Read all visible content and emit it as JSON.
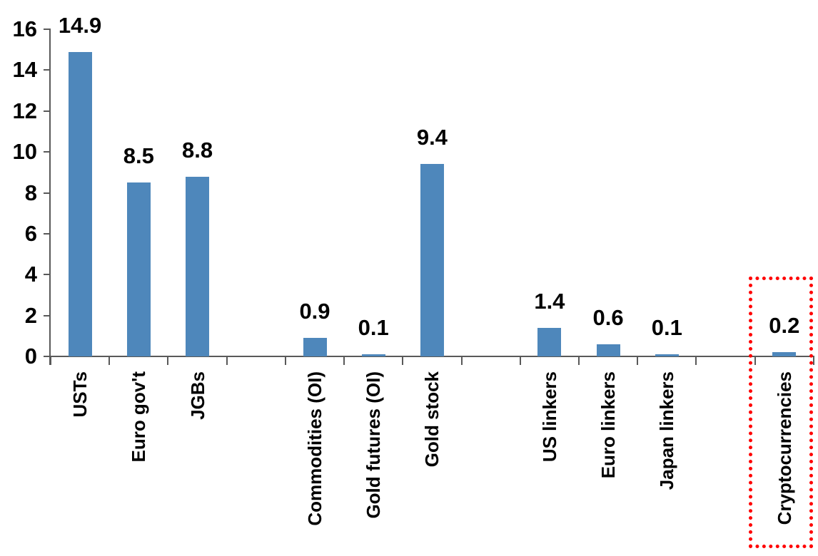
{
  "chart_data": {
    "type": "bar",
    "title": "",
    "xlabel": "",
    "ylabel": "",
    "ylim": [
      0,
      16
    ],
    "ytick_step": 2,
    "ytick_labels": [
      "0",
      "2",
      "4",
      "6",
      "8",
      "10",
      "12",
      "14",
      "16"
    ],
    "grid": false,
    "legend": "none",
    "n_slots": 13,
    "bar_color": "#4E87BB",
    "axis_color": "#595959",
    "text_color": "#000000",
    "highlight_color": "#FF0000",
    "value_label_format": "one_decimal",
    "items": [
      {
        "label": "USTs",
        "value": 14.9,
        "value_label": "14.9",
        "slot": 0,
        "highlighted": false
      },
      {
        "label": "Euro gov't",
        "value": 8.5,
        "value_label": "8.5",
        "slot": 1,
        "highlighted": false
      },
      {
        "label": "JGBs",
        "value": 8.8,
        "value_label": "8.8",
        "slot": 2,
        "highlighted": false
      },
      {
        "label": "Commodities (OI)",
        "value": 0.9,
        "value_label": "0.9",
        "slot": 4,
        "highlighted": false
      },
      {
        "label": "Gold futures (OI)",
        "value": 0.1,
        "value_label": "0.1",
        "slot": 5,
        "highlighted": false
      },
      {
        "label": "Gold stock",
        "value": 9.4,
        "value_label": "9.4",
        "slot": 6,
        "highlighted": false
      },
      {
        "label": "US linkers",
        "value": 1.4,
        "value_label": "1.4",
        "slot": 8,
        "highlighted": false
      },
      {
        "label": "Euro linkers",
        "value": 0.6,
        "value_label": "0.6",
        "slot": 9,
        "highlighted": false
      },
      {
        "label": "Japan linkers",
        "value": 0.1,
        "value_label": "0.1",
        "slot": 10,
        "highlighted": false
      },
      {
        "label": "Cryptocurrencies",
        "value": 0.2,
        "value_label": "0.2",
        "slot": 12,
        "highlighted": true
      }
    ],
    "annotations": [
      {
        "type": "highlight-rectangle",
        "style": "red dotted",
        "target": "Cryptocurrencies"
      }
    ]
  }
}
